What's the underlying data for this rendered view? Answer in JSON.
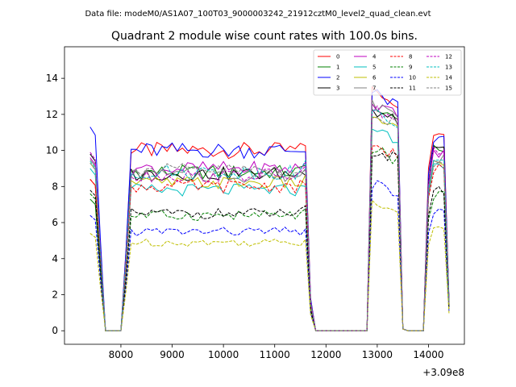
{
  "chart_data": {
    "type": "line",
    "suptitle": "Data file: modeM0/AS1A07_100T03_9000003242_21912cztM0_level2_quad_clean.evt",
    "title": "Quadrant 2 module wise count rates with 100.0s bins.",
    "xlabel": "",
    "ylabel": "",
    "x_offset_label": "+3.09e8",
    "xlim": [
      6900,
      14700
    ],
    "ylim": [
      -0.75,
      15.75
    ],
    "x_ticks": [
      8000,
      9000,
      10000,
      11000,
      12000,
      13000,
      14000
    ],
    "x_tick_labels": [
      "8000",
      "9000",
      "10000",
      "11000",
      "12000",
      "13000",
      "14000"
    ],
    "y_ticks": [
      0,
      2,
      4,
      6,
      8,
      10,
      12,
      14
    ],
    "y_tick_labels": [
      "0",
      "2",
      "4",
      "6",
      "8",
      "10",
      "12",
      "14"
    ],
    "legend_position": "top-right",
    "x_segments": [
      {
        "start": 7400,
        "end": 14400,
        "step": 100
      }
    ],
    "segment_profile": {
      "note_levels": "level per series for plateau A (8200-11600), plateau B peak (12900-13400), plateau C (14000-14400)"
    },
    "series": [
      {
        "name": "0",
        "color": "#ff0000",
        "dash": "solid",
        "start": 8.4,
        "a": 10.0,
        "b": 14.0,
        "c": 11.0
      },
      {
        "name": "1",
        "color": "#008000",
        "dash": "solid",
        "start": 7.3,
        "a": 8.8,
        "b": 13.0,
        "c": 10.0
      },
      {
        "name": "2",
        "color": "#0000ff",
        "dash": "solid",
        "start": 11.3,
        "a": 10.0,
        "b": 13.8,
        "c": 10.6
      },
      {
        "name": "3",
        "color": "#000000",
        "dash": "solid",
        "start": 9.8,
        "a": 8.7,
        "b": 12.8,
        "c": 10.0
      },
      {
        "name": "4",
        "color": "#bf00bf",
        "dash": "solid",
        "start": 9.6,
        "a": 9.0,
        "b": 13.2,
        "c": 9.8
      },
      {
        "name": "5",
        "color": "#00bfbf",
        "dash": "solid",
        "start": 9.0,
        "a": 7.8,
        "b": 11.8,
        "c": 9.0
      },
      {
        "name": "6",
        "color": "#bfbf00",
        "dash": "solid",
        "start": 9.3,
        "a": 8.2,
        "b": 12.5,
        "c": 9.3
      },
      {
        "name": "7",
        "color": "#808080",
        "dash": "solid",
        "start": 9.5,
        "a": 8.6,
        "b": 13.2,
        "c": 9.5
      },
      {
        "name": "8",
        "color": "#ff0000",
        "dash": "dashed",
        "start": 8.4,
        "a": 8.0,
        "b": 10.8,
        "c": 9.0
      },
      {
        "name": "9",
        "color": "#008000",
        "dash": "dashed",
        "start": 7.6,
        "a": 6.4,
        "b": 10.5,
        "c": 7.5
      },
      {
        "name": "10",
        "color": "#0000ff",
        "dash": "dashed",
        "start": 6.4,
        "a": 5.5,
        "b": 8.5,
        "c": 6.6
      },
      {
        "name": "11",
        "color": "#000000",
        "dash": "dashed",
        "start": 7.8,
        "a": 6.5,
        "b": 10.5,
        "c": 7.8
      },
      {
        "name": "12",
        "color": "#bf00bf",
        "dash": "dashed",
        "start": 9.9,
        "a": 8.6,
        "b": 12.8,
        "c": 9.9
      },
      {
        "name": "13",
        "color": "#00bfbf",
        "dash": "dashed",
        "start": 9.4,
        "a": 8.8,
        "b": 12.6,
        "c": 9.6
      },
      {
        "name": "14",
        "color": "#bfbf00",
        "dash": "dashed",
        "start": 5.4,
        "a": 4.9,
        "b": 7.6,
        "c": 5.8
      },
      {
        "name": "15",
        "color": "#808080",
        "dash": "dashed",
        "start": 9.3,
        "a": 8.9,
        "b": 12.7,
        "c": 9.3
      }
    ]
  }
}
